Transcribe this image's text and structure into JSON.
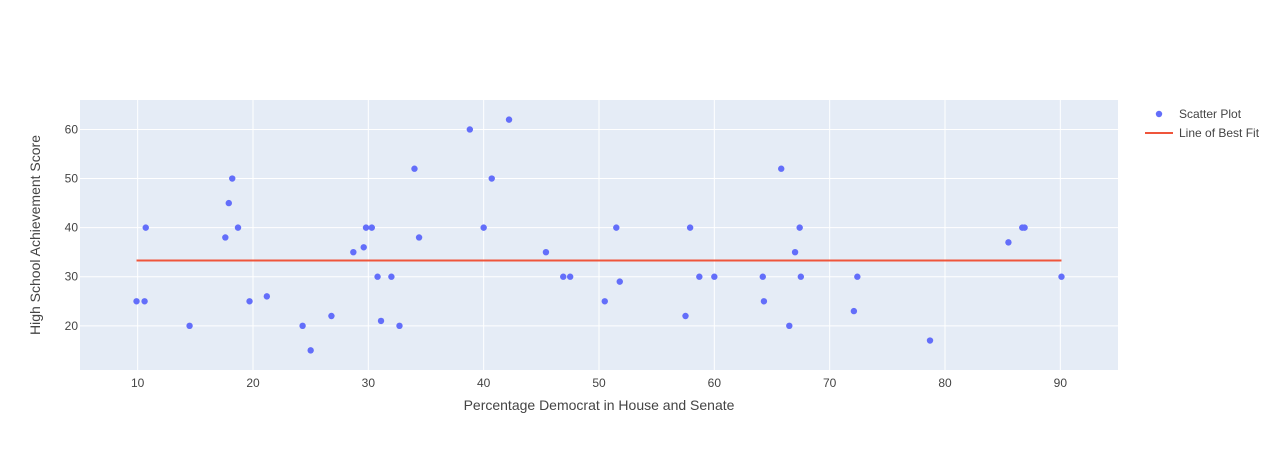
{
  "chart_data": {
    "type": "scatter",
    "xlabel": "Percentage Democrat in House and Senate",
    "ylabel": "High School Achievement Score",
    "xlim": [
      5,
      95
    ],
    "ylim": [
      11,
      66
    ],
    "xticks": [
      10,
      20,
      30,
      40,
      50,
      60,
      70,
      80,
      90
    ],
    "yticks": [
      20,
      30,
      40,
      50,
      60
    ],
    "grid": true,
    "legend": "top-right",
    "series": [
      {
        "name": "Scatter Plot",
        "type": "scatter",
        "color": "#636efa",
        "x": [
          9.9,
          10.6,
          10.7,
          14.5,
          17.6,
          17.9,
          18.2,
          18.7,
          19.7,
          21.2,
          24.3,
          25.0,
          26.8,
          28.7,
          29.6,
          29.8,
          30.3,
          30.8,
          31.1,
          32.0,
          32.7,
          34.0,
          34.4,
          38.8,
          40.0,
          40.7,
          42.2,
          45.4,
          46.9,
          47.5,
          50.5,
          51.5,
          51.8,
          57.5,
          57.9,
          58.7,
          60.0,
          64.2,
          64.3,
          65.8,
          66.5,
          67.0,
          67.4,
          67.5,
          72.1,
          72.4,
          78.7,
          85.5,
          86.7,
          86.9,
          90.1
        ],
        "y": [
          25,
          25,
          40,
          20,
          38,
          45,
          50,
          40,
          25,
          26,
          20,
          15,
          22,
          35,
          36,
          40,
          40,
          30,
          21,
          30,
          20,
          52,
          38,
          60,
          40,
          50,
          62,
          35,
          30,
          30,
          25,
          40,
          29,
          22,
          40,
          30,
          30,
          30,
          25,
          52,
          20,
          35,
          40,
          30,
          23,
          30,
          17,
          37,
          40,
          40,
          30
        ]
      },
      {
        "name": "Line of Best Fit",
        "type": "line",
        "color": "#ef553b",
        "x": [
          9.9,
          90.1
        ],
        "y": [
          33.3,
          33.3
        ]
      }
    ]
  }
}
